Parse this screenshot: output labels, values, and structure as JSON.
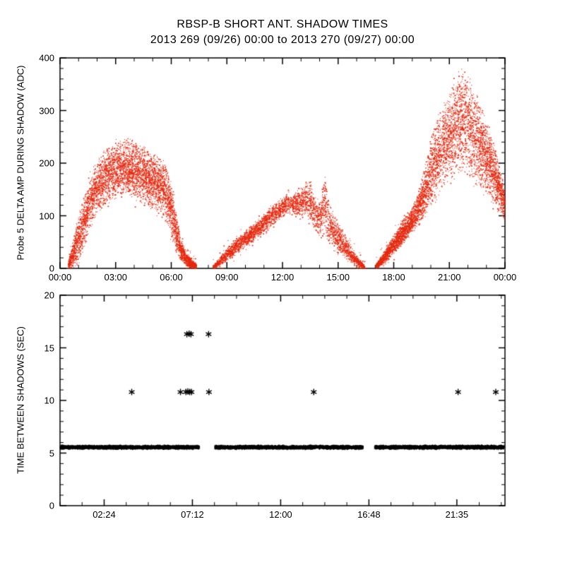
{
  "page": {
    "title_line1": "RBSP-B SHORT ANT. SHADOW TIMES",
    "title_line2": "2013 269 (09/26) 00:00 to 2013 270 (09/27) 00:00"
  },
  "chart_data": [
    {
      "type": "scatter",
      "panel": "top",
      "title": "RBSP-B SHORT ANT. SHADOW TIMES",
      "subtitle": "2013 269 (09/26) 00:00 to 2013 270 (09/27) 00:00",
      "ylabel": "Probe 5 DELTA AMP DURING SHADOW (ADC)",
      "xlim_hours": [
        0,
        24
      ],
      "ylim": [
        0,
        400
      ],
      "yticks": [
        0,
        100,
        200,
        300,
        400
      ],
      "y_minor_step": 20,
      "xtick_hours": [
        0,
        3,
        6,
        9,
        12,
        15,
        18,
        21,
        24
      ],
      "xtick_labels": [
        "00:00",
        "03:00",
        "06:00",
        "09:00",
        "12:00",
        "15:00",
        "18:00",
        "21:00",
        "00:00"
      ],
      "x_minor_step_hours": 1,
      "marker": "dot",
      "marker_color": "#e5290f",
      "grid": false,
      "legend": null,
      "lobes": [
        {
          "name": "shadow-period-1",
          "points": 5200,
          "envelope": [
            [
              0.45,
              0,
              12
            ],
            [
              0.7,
              0,
              55
            ],
            [
              0.95,
              5,
              95
            ],
            [
              1.2,
              25,
              130
            ],
            [
              1.5,
              55,
              165
            ],
            [
              1.8,
              85,
              195
            ],
            [
              2.1,
              105,
              215
            ],
            [
              2.5,
              118,
              232
            ],
            [
              3.0,
              128,
              243
            ],
            [
              3.5,
              133,
              252
            ],
            [
              3.9,
              130,
              248
            ],
            [
              4.3,
              121,
              240
            ],
            [
              4.8,
              112,
              228
            ],
            [
              5.3,
              102,
              218
            ],
            [
              5.7,
              92,
              205
            ],
            [
              6.0,
              60,
              165
            ],
            [
              6.25,
              28,
              112
            ],
            [
              6.5,
              12,
              62
            ],
            [
              6.8,
              3,
              32
            ],
            [
              7.1,
              0,
              18
            ],
            [
              7.35,
              0,
              8
            ]
          ]
        },
        {
          "name": "shadow-period-2",
          "points": 3600,
          "envelope": [
            [
              8.25,
              0,
              6
            ],
            [
              8.6,
              2,
              20
            ],
            [
              9.0,
              12,
              40
            ],
            [
              9.5,
              25,
              58
            ],
            [
              10.0,
              38,
              72
            ],
            [
              10.5,
              52,
              88
            ],
            [
              11.0,
              62,
              105
            ],
            [
              11.4,
              75,
              122
            ],
            [
              11.8,
              92,
              132
            ],
            [
              12.2,
              102,
              140
            ],
            [
              12.6,
              98,
              142
            ],
            [
              13.0,
              92,
              158
            ],
            [
              13.3,
              95,
              172
            ],
            [
              13.55,
              85,
              168
            ],
            [
              13.8,
              62,
              148
            ],
            [
              14.05,
              55,
              135
            ],
            [
              14.3,
              55,
              190
            ],
            [
              14.5,
              45,
              128
            ],
            [
              14.8,
              35,
              105
            ],
            [
              15.1,
              25,
              85
            ],
            [
              15.5,
              12,
              58
            ],
            [
              15.9,
              4,
              32
            ],
            [
              16.2,
              1,
              16
            ],
            [
              16.45,
              0,
              5
            ]
          ]
        },
        {
          "name": "shadow-period-3",
          "points": 5200,
          "envelope": [
            [
              17.05,
              0,
              8
            ],
            [
              17.4,
              5,
              28
            ],
            [
              17.8,
              18,
              52
            ],
            [
              18.2,
              32,
              75
            ],
            [
              18.6,
              48,
              98
            ],
            [
              19.0,
              65,
              118
            ],
            [
              19.3,
              78,
              145
            ],
            [
              19.6,
              92,
              185
            ],
            [
              19.9,
              105,
              235
            ],
            [
              20.2,
              120,
              275
            ],
            [
              20.5,
              135,
              305
            ],
            [
              20.8,
              148,
              330
            ],
            [
              21.1,
              158,
              352
            ],
            [
              21.4,
              168,
              372
            ],
            [
              21.7,
              172,
              388
            ],
            [
              22.0,
              165,
              378
            ],
            [
              22.3,
              155,
              352
            ],
            [
              22.6,
              148,
              325
            ],
            [
              22.9,
              138,
              300
            ],
            [
              23.2,
              125,
              268
            ],
            [
              23.5,
              112,
              232
            ],
            [
              23.8,
              98,
              185
            ],
            [
              24.0,
              88,
              148
            ]
          ]
        }
      ]
    },
    {
      "type": "scatter",
      "panel": "bottom",
      "ylabel": "TIME BETWEEN SHADOWS (SEC)",
      "xlim_hours": [
        0,
        24.2
      ],
      "ylim": [
        0,
        20
      ],
      "yticks": [
        0,
        5,
        10,
        15,
        20
      ],
      "y_minor_step": 1,
      "xtick_hours": [
        2.4,
        7.2,
        12.0,
        16.8,
        21.5833
      ],
      "xtick_labels": [
        "02:24",
        "07:12",
        "12:00",
        "16:48",
        "21:35"
      ],
      "x_minor_step_hours": 1.2,
      "marker": "asterisk",
      "marker_color": "#000000",
      "grid": false,
      "legend": null,
      "bands": [
        {
          "y_sec": 5.55,
          "y_jitter": 0.14,
          "x_start": 0.05,
          "x_end": 7.55,
          "points": 900
        },
        {
          "y_sec": 5.55,
          "y_jitter": 0.14,
          "x_start": 8.45,
          "x_end": 16.45,
          "points": 950
        },
        {
          "y_sec": 5.55,
          "y_jitter": 0.14,
          "x_start": 17.15,
          "x_end": 24.15,
          "points": 850
        }
      ],
      "outliers": [
        [
          3.9,
          10.8
        ],
        [
          6.55,
          10.8
        ],
        [
          6.85,
          10.8
        ],
        [
          6.95,
          10.85
        ],
        [
          7.05,
          10.8
        ],
        [
          7.15,
          10.8
        ],
        [
          8.1,
          10.8
        ],
        [
          13.8,
          10.8
        ],
        [
          21.65,
          10.8
        ],
        [
          23.7,
          10.8
        ],
        [
          6.9,
          16.3
        ],
        [
          7.02,
          16.35
        ],
        [
          7.12,
          16.3
        ],
        [
          8.08,
          16.3
        ]
      ]
    }
  ]
}
